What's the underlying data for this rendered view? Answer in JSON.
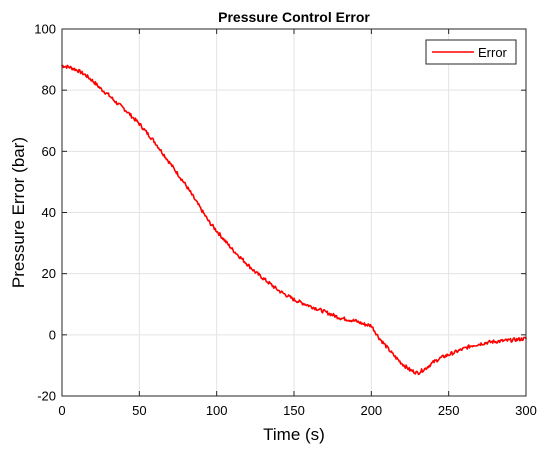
{
  "chart_data": {
    "type": "line",
    "title": "Pressure Control Error",
    "xlabel": "Time (s)",
    "ylabel": "Pressure Error (bar)",
    "xlim": [
      0,
      300
    ],
    "ylim": [
      -20,
      100
    ],
    "xticks": [
      0,
      50,
      100,
      150,
      200,
      250,
      300
    ],
    "yticks": [
      -20,
      0,
      20,
      40,
      60,
      80,
      100
    ],
    "grid": true,
    "legend_position": "top-right",
    "series": [
      {
        "name": "Error",
        "color": "#ff0000",
        "x": [
          0,
          5,
          10,
          15,
          20,
          25,
          30,
          35,
          40,
          45,
          50,
          55,
          60,
          65,
          70,
          75,
          80,
          85,
          90,
          95,
          100,
          105,
          110,
          115,
          120,
          125,
          130,
          135,
          140,
          145,
          150,
          155,
          160,
          165,
          170,
          175,
          180,
          185,
          190,
          195,
          200,
          205,
          210,
          215,
          220,
          225,
          230,
          235,
          240,
          245,
          250,
          255,
          260,
          265,
          270,
          275,
          280,
          285,
          290,
          295,
          300
        ],
        "y": [
          88,
          87.5,
          86.5,
          85,
          83,
          80.5,
          78.5,
          76,
          74,
          71.5,
          69,
          66,
          63,
          59.5,
          56,
          52.5,
          49,
          45,
          41,
          37,
          34,
          31,
          28,
          25.5,
          23,
          20.5,
          18.5,
          16.5,
          14.5,
          13,
          11.5,
          10.5,
          9.5,
          8.5,
          7.5,
          6.5,
          5.5,
          5,
          4.5,
          3.5,
          3,
          -1,
          -4,
          -7,
          -9.5,
          -11.5,
          -12.5,
          -11,
          -9,
          -7.5,
          -6.5,
          -5.5,
          -4.5,
          -3.5,
          -3,
          -2.5,
          -2.2,
          -2,
          -1.8,
          -1.5,
          -1.2
        ]
      }
    ]
  }
}
